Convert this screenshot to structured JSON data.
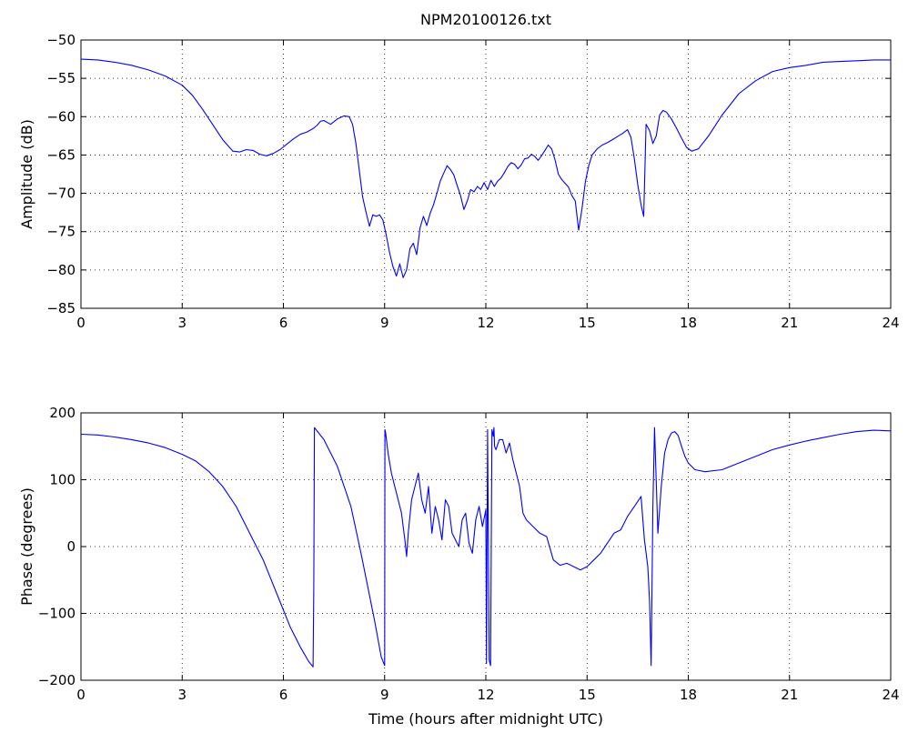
{
  "colors": {
    "series": "#0000ff",
    "axes": "#000000",
    "background": "#ffffff"
  },
  "chart_data": [
    {
      "type": "line",
      "title": "NPM20100126.txt",
      "xlabel": "",
      "ylabel": "Amplitude (dB)",
      "xlim": [
        0,
        24
      ],
      "ylim": [
        -85,
        -50
      ],
      "xticks": [
        0,
        3,
        6,
        9,
        12,
        15,
        18,
        21,
        24
      ],
      "xtick_labels": [
        "0",
        "3",
        "6",
        "9",
        "12",
        "15",
        "18",
        "21",
        "24"
      ],
      "yticks": [
        -50,
        -55,
        -60,
        -65,
        -70,
        -75,
        -80,
        -85
      ],
      "ytick_labels": [
        "−50",
        "−55",
        "−60",
        "−65",
        "−70",
        "−75",
        "−80",
        "−85"
      ],
      "grid": true,
      "series": [
        {
          "x": [
            0,
            0.5,
            1,
            1.5,
            2,
            2.5,
            3,
            3.3,
            3.6,
            3.9,
            4.2,
            4.5,
            4.7,
            4.9,
            5.1,
            5.3,
            5.5,
            5.7,
            5.9,
            6.1,
            6.3,
            6.5,
            6.7,
            6.9,
            7.0,
            7.1,
            7.2,
            7.4,
            7.6,
            7.8,
            7.95,
            8.05,
            8.15,
            8.25,
            8.35,
            8.45,
            8.55,
            8.65,
            8.75,
            8.85,
            8.95,
            9.05,
            9.15,
            9.25,
            9.35,
            9.45,
            9.55,
            9.65,
            9.75,
            9.85,
            9.95,
            10.05,
            10.15,
            10.25,
            10.35,
            10.45,
            10.55,
            10.65,
            10.75,
            10.85,
            10.95,
            11.05,
            11.15,
            11.25,
            11.35,
            11.45,
            11.55,
            11.65,
            11.75,
            11.85,
            11.95,
            12.05,
            12.15,
            12.25,
            12.35,
            12.45,
            12.55,
            12.65,
            12.75,
            12.85,
            12.95,
            13.05,
            13.15,
            13.25,
            13.35,
            13.45,
            13.55,
            13.65,
            13.75,
            13.85,
            13.95,
            14.05,
            14.15,
            14.25,
            14.35,
            14.45,
            14.55,
            14.65,
            14.75,
            14.85,
            14.95,
            15.05,
            15.15,
            15.3,
            15.45,
            15.6,
            15.75,
            15.9,
            16.05,
            16.2,
            16.3,
            16.4,
            16.5,
            16.6,
            16.68,
            16.75,
            16.85,
            16.95,
            17.05,
            17.15,
            17.25,
            17.35,
            17.5,
            17.65,
            17.8,
            17.95,
            18.1,
            18.3,
            18.6,
            19.0,
            19.5,
            20.0,
            20.5,
            21.0,
            21.5,
            22.0,
            22.5,
            23.0,
            23.5,
            24.0
          ],
          "values": [
            -52.5,
            -52.6,
            -52.9,
            -53.3,
            -53.9,
            -54.7,
            -55.9,
            -57.2,
            -59.0,
            -61.0,
            -63.0,
            -64.5,
            -64.6,
            -64.3,
            -64.4,
            -64.9,
            -65.1,
            -64.8,
            -64.3,
            -63.6,
            -62.9,
            -62.3,
            -62.0,
            -61.5,
            -61.1,
            -60.6,
            -60.5,
            -61.0,
            -60.3,
            -59.9,
            -60.0,
            -61.0,
            -63.5,
            -67.0,
            -70.5,
            -72.5,
            -74.3,
            -72.8,
            -73.0,
            -72.8,
            -73.5,
            -75.5,
            -77.8,
            -79.6,
            -80.8,
            -79.2,
            -81.0,
            -80.0,
            -77.2,
            -76.5,
            -78.0,
            -74.5,
            -73.0,
            -74.2,
            -72.6,
            -71.5,
            -70.0,
            -68.4,
            -67.4,
            -66.4,
            -66.9,
            -67.6,
            -69.0,
            -70.3,
            -72.1,
            -71.0,
            -69.5,
            -69.8,
            -69.1,
            -69.5,
            -68.6,
            -69.5,
            -68.3,
            -69.1,
            -68.4,
            -68.0,
            -67.3,
            -66.5,
            -66.0,
            -66.2,
            -66.8,
            -66.3,
            -65.5,
            -65.4,
            -64.9,
            -65.2,
            -65.7,
            -65.1,
            -64.4,
            -63.7,
            -64.2,
            -65.6,
            -67.5,
            -68.2,
            -68.7,
            -69.2,
            -70.3,
            -71.0,
            -74.8,
            -72.0,
            -68.5,
            -66.4,
            -65.0,
            -64.2,
            -63.7,
            -63.4,
            -63.0,
            -62.6,
            -62.2,
            -61.7,
            -62.7,
            -65.5,
            -68.8,
            -71.5,
            -73.0,
            -61.0,
            -61.8,
            -63.5,
            -62.5,
            -59.8,
            -59.2,
            -59.4,
            -60.3,
            -61.5,
            -62.8,
            -64.0,
            -64.5,
            -64.2,
            -62.5,
            -59.8,
            -57.0,
            -55.3,
            -54.1,
            -53.6,
            -53.3,
            -52.9,
            -52.8,
            -52.7,
            -52.6,
            -52.6
          ]
        }
      ]
    },
    {
      "type": "line",
      "title": "",
      "xlabel": "Time (hours after midnight UTC)",
      "ylabel": "Phase (degrees)",
      "xlim": [
        0,
        24
      ],
      "ylim": [
        -200,
        200
      ],
      "xticks": [
        0,
        3,
        6,
        9,
        12,
        15,
        18,
        21,
        24
      ],
      "xtick_labels": [
        "0",
        "3",
        "6",
        "9",
        "12",
        "15",
        "18",
        "21",
        "24"
      ],
      "yticks": [
        200,
        100,
        0,
        -100,
        -200
      ],
      "ytick_labels": [
        "200",
        "100",
        "0",
        "−100",
        "−200"
      ],
      "grid": true,
      "series": [
        {
          "x": [
            0,
            0.5,
            1,
            1.5,
            2,
            2.5,
            3,
            3.4,
            3.8,
            4.2,
            4.6,
            5.0,
            5.4,
            5.8,
            6.2,
            6.5,
            6.75,
            6.88,
            6.9,
            6.92,
            7.2,
            7.6,
            8.0,
            8.3,
            8.5,
            8.7,
            8.9,
            9.0,
            9.01,
            9.03,
            9.1,
            9.2,
            9.3,
            9.4,
            9.5,
            9.6,
            9.65,
            9.7,
            9.8,
            9.9,
            10.0,
            10.1,
            10.2,
            10.3,
            10.4,
            10.5,
            10.6,
            10.7,
            10.8,
            10.9,
            11.0,
            11.1,
            11.2,
            11.3,
            11.4,
            11.5,
            11.6,
            11.7,
            11.8,
            11.9,
            12.0,
            12.02,
            12.05,
            12.1,
            12.14,
            12.18,
            12.22,
            12.24,
            12.26,
            12.3,
            12.4,
            12.5,
            12.6,
            12.7,
            12.8,
            12.9,
            13.0,
            13.1,
            13.2,
            13.4,
            13.6,
            13.8,
            14.0,
            14.2,
            14.4,
            14.6,
            14.8,
            15.0,
            15.2,
            15.4,
            15.6,
            15.8,
            16.0,
            16.2,
            16.4,
            16.6,
            16.7,
            16.8,
            16.85,
            16.9,
            16.95,
            17.0,
            17.1,
            17.2,
            17.3,
            17.4,
            17.5,
            17.6,
            17.7,
            17.8,
            17.9,
            18.0,
            18.2,
            18.5,
            19.0,
            19.5,
            20.0,
            20.5,
            21.0,
            21.5,
            22.0,
            22.5,
            23.0,
            23.5,
            24.0
          ],
          "values": [
            168,
            167,
            164,
            160,
            155,
            148,
            138,
            128,
            112,
            90,
            60,
            20,
            -20,
            -70,
            -120,
            -150,
            -172,
            -180,
            -60,
            178,
            160,
            120,
            60,
            -10,
            -60,
            -110,
            -165,
            -178,
            175,
            170,
            140,
            110,
            90,
            70,
            50,
            10,
            -15,
            20,
            70,
            90,
            110,
            70,
            50,
            90,
            20,
            60,
            40,
            10,
            70,
            60,
            20,
            10,
            0,
            40,
            50,
            5,
            -10,
            40,
            60,
            30,
            55,
            -175,
            175,
            -170,
            -178,
            175,
            165,
            178,
            150,
            145,
            160,
            160,
            140,
            155,
            130,
            110,
            90,
            50,
            40,
            30,
            20,
            15,
            -20,
            -28,
            -25,
            -30,
            -35,
            -30,
            -20,
            -10,
            5,
            20,
            25,
            45,
            60,
            75,
            10,
            -30,
            -80,
            -178,
            60,
            178,
            20,
            90,
            140,
            160,
            170,
            172,
            166,
            150,
            135,
            125,
            115,
            112,
            115,
            125,
            135,
            145,
            152,
            158,
            163,
            168,
            172,
            174,
            173
          ]
        }
      ]
    }
  ]
}
